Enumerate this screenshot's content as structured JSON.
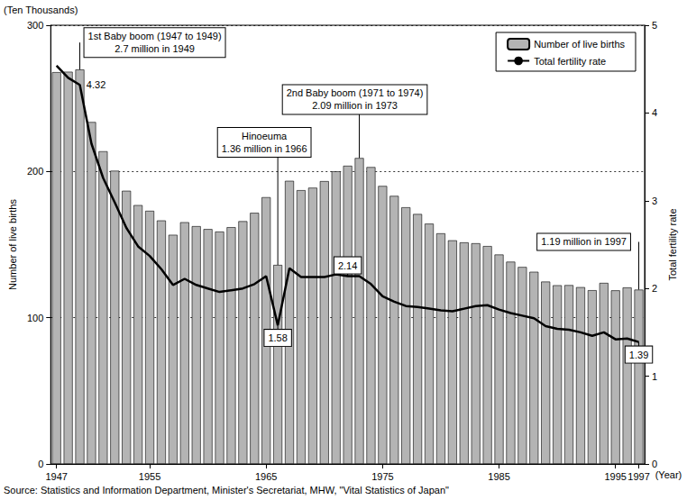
{
  "chart_data": {
    "type": "bar",
    "ylabel": "Number of live births",
    "ylabel_unit": "(Ten Thousands)",
    "y2label": "Total fertility rate",
    "xlabel": "(Year)",
    "source": "Source: Statistics and Information Department, Minister's Secretariat, MHW, \"Vital Statistics of Japan\"",
    "x": [
      1947,
      1948,
      1949,
      1950,
      1951,
      1952,
      1953,
      1954,
      1955,
      1956,
      1957,
      1958,
      1959,
      1960,
      1961,
      1962,
      1963,
      1964,
      1965,
      1966,
      1967,
      1968,
      1969,
      1970,
      1971,
      1972,
      1973,
      1974,
      1975,
      1976,
      1977,
      1978,
      1979,
      1980,
      1981,
      1982,
      1983,
      1984,
      1985,
      1986,
      1987,
      1988,
      1989,
      1990,
      1991,
      1992,
      1993,
      1994,
      1995,
      1996,
      1997
    ],
    "xlim": [
      1946.5,
      1997.5
    ],
    "xticks": [
      1947,
      1955,
      1965,
      1975,
      1985,
      1995,
      1997
    ],
    "ylim": [
      0,
      300
    ],
    "yticks": [
      0,
      100,
      200,
      300
    ],
    "y2lim": [
      0,
      5
    ],
    "y2ticks": [
      0,
      1,
      2,
      3,
      4,
      5
    ],
    "grid": true,
    "legend": "upper right",
    "series": [
      {
        "name": "Number of live births",
        "type": "bar",
        "color": "#b4b4b4",
        "values": [
          267.9,
          268.2,
          269.7,
          233.8,
          213.8,
          200.5,
          186.8,
          177.0,
          173.1,
          166.5,
          156.7,
          165.3,
          162.6,
          160.6,
          158.9,
          161.9,
          166.0,
          171.7,
          182.4,
          136.1,
          193.6,
          187.2,
          188.9,
          193.4,
          200.1,
          203.9,
          209.2,
          203.0,
          190.1,
          183.3,
          175.5,
          170.9,
          164.3,
          157.7,
          152.9,
          151.5,
          150.9,
          149.0,
          143.2,
          138.3,
          134.7,
          131.4,
          124.7,
          122.2,
          122.3,
          120.9,
          118.8,
          123.8,
          118.7,
          120.7,
          119.2
        ]
      },
      {
        "name": "Total fertility rate",
        "type": "line",
        "axis": "y2",
        "color": "#000000",
        "line_style": "solid",
        "values": [
          4.54,
          4.4,
          4.32,
          3.65,
          3.26,
          2.98,
          2.69,
          2.48,
          2.37,
          2.22,
          2.04,
          2.11,
          2.04,
          2.0,
          1.96,
          1.98,
          2.0,
          2.05,
          2.14,
          1.58,
          2.23,
          2.13,
          2.13,
          2.13,
          2.16,
          2.14,
          2.14,
          2.05,
          1.91,
          1.85,
          1.8,
          1.79,
          1.77,
          1.75,
          1.74,
          1.77,
          1.8,
          1.81,
          1.76,
          1.72,
          1.69,
          1.66,
          1.57,
          1.54,
          1.53,
          1.5,
          1.46,
          1.5,
          1.42,
          1.43,
          1.39
        ]
      }
    ],
    "annotations": [
      {
        "text": "1st Baby boom (1947 to 1949)\n2.7 million in 1949",
        "x": 1949,
        "series": "Number of live births"
      },
      {
        "text": "Hinoeuma\n1.36 million in 1966",
        "x": 1966,
        "series": "Number of live births"
      },
      {
        "text": "2nd Baby boom (1971 to 1974)\n2.09 million in 1973",
        "x": 1973,
        "series": "Number of live births"
      },
      {
        "text": "1.19 million in 1997",
        "x": 1997,
        "series": "Number of live births"
      },
      {
        "text": "4.32",
        "x": 1949,
        "series": "Total fertility rate"
      },
      {
        "text": "1.58",
        "x": 1966,
        "series": "Total fertility rate"
      },
      {
        "text": "2.14",
        "x": 1972,
        "series": "Total fertility rate"
      },
      {
        "text": "1.39",
        "x": 1997,
        "series": "Total fertility rate"
      }
    ]
  }
}
